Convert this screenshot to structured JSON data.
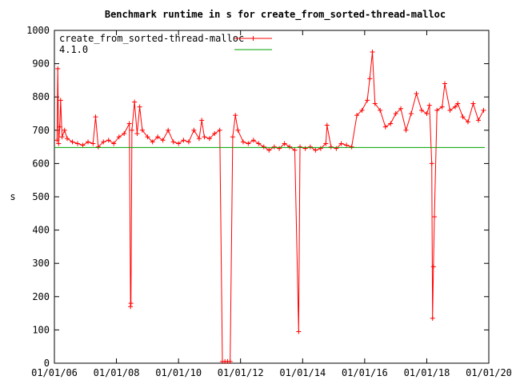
{
  "chart_data": {
    "type": "line",
    "title": "Benchmark runtime in s for create_from_sorted-thread-malloc",
    "xlabel": "",
    "ylabel": "s",
    "xlim": [
      "2006-01-01",
      "2020-01-01"
    ],
    "ylim": [
      0,
      1000
    ],
    "y_ticks": [
      "0",
      "100",
      "200",
      "300",
      "400",
      "500",
      "600",
      "700",
      "800",
      "900",
      "1000"
    ],
    "x_ticks": [
      {
        "date": "2006-01-01",
        "label": "01/01/06"
      },
      {
        "date": "2008-01-01",
        "label": "01/01/08"
      },
      {
        "date": "2010-01-01",
        "label": "01/01/10"
      },
      {
        "date": "2012-01-01",
        "label": "01/01/12"
      },
      {
        "date": "2014-01-01",
        "label": "01/01/14"
      },
      {
        "date": "2016-01-01",
        "label": "01/01/16"
      },
      {
        "date": "2018-01-01",
        "label": "01/01/18"
      },
      {
        "date": "2020-01-01",
        "label": "01/01/20"
      }
    ],
    "legend_position": "top-left",
    "grid": false,
    "series": [
      {
        "name": "create_from_sorted-thread-malloc",
        "color": "#ff0000",
        "marker": "plus",
        "points": [
          [
            "2006-02-01",
            670
          ],
          [
            "2006-02-10",
            885
          ],
          [
            "2006-02-20",
            660
          ],
          [
            "2006-03-05",
            710
          ],
          [
            "2006-03-15",
            790
          ],
          [
            "2006-04-01",
            680
          ],
          [
            "2006-05-01",
            700
          ],
          [
            "2006-06-01",
            675
          ],
          [
            "2006-08-01",
            665
          ],
          [
            "2006-10-01",
            660
          ],
          [
            "2006-12-01",
            655
          ],
          [
            "2007-02-01",
            665
          ],
          [
            "2007-04-01",
            660
          ],
          [
            "2007-05-01",
            740
          ],
          [
            "2007-06-01",
            650
          ],
          [
            "2007-08-01",
            665
          ],
          [
            "2007-10-01",
            670
          ],
          [
            "2007-12-01",
            660
          ],
          [
            "2008-02-01",
            680
          ],
          [
            "2008-04-01",
            690
          ],
          [
            "2008-06-01",
            720
          ],
          [
            "2008-06-15",
            170
          ],
          [
            "2008-06-20",
            180
          ],
          [
            "2008-07-01",
            700
          ],
          [
            "2008-08-01",
            785
          ],
          [
            "2008-09-01",
            690
          ],
          [
            "2008-10-01",
            770
          ],
          [
            "2008-11-01",
            700
          ],
          [
            "2009-01-01",
            680
          ],
          [
            "2009-03-01",
            665
          ],
          [
            "2009-05-01",
            680
          ],
          [
            "2009-07-01",
            670
          ],
          [
            "2009-09-01",
            700
          ],
          [
            "2009-11-01",
            665
          ],
          [
            "2010-01-01",
            660
          ],
          [
            "2010-03-01",
            670
          ],
          [
            "2010-05-01",
            665
          ],
          [
            "2010-07-01",
            700
          ],
          [
            "2010-09-01",
            675
          ],
          [
            "2010-10-01",
            730
          ],
          [
            "2010-11-01",
            680
          ],
          [
            "2011-01-01",
            675
          ],
          [
            "2011-03-01",
            690
          ],
          [
            "2011-05-01",
            700
          ],
          [
            "2011-06-01",
            5
          ],
          [
            "2011-07-01",
            5
          ],
          [
            "2011-08-01",
            5
          ],
          [
            "2011-09-01",
            5
          ],
          [
            "2011-10-01",
            680
          ],
          [
            "2011-11-01",
            745
          ],
          [
            "2011-12-01",
            700
          ],
          [
            "2012-02-01",
            665
          ],
          [
            "2012-04-01",
            660
          ],
          [
            "2012-06-01",
            670
          ],
          [
            "2012-08-01",
            660
          ],
          [
            "2012-10-01",
            650
          ],
          [
            "2012-12-01",
            640
          ],
          [
            "2013-02-01",
            650
          ],
          [
            "2013-04-01",
            645
          ],
          [
            "2013-06-01",
            660
          ],
          [
            "2013-08-01",
            650
          ],
          [
            "2013-10-01",
            640
          ],
          [
            "2013-11-15",
            95
          ],
          [
            "2013-12-01",
            650
          ],
          [
            "2014-02-01",
            645
          ],
          [
            "2014-04-01",
            650
          ],
          [
            "2014-06-01",
            640
          ],
          [
            "2014-08-01",
            645
          ],
          [
            "2014-10-01",
            660
          ],
          [
            "2014-10-15",
            715
          ],
          [
            "2014-12-01",
            650
          ],
          [
            "2015-02-01",
            645
          ],
          [
            "2015-04-01",
            660
          ],
          [
            "2015-06-01",
            655
          ],
          [
            "2015-08-01",
            650
          ],
          [
            "2015-10-01",
            745
          ],
          [
            "2015-12-01",
            760
          ],
          [
            "2016-02-01",
            790
          ],
          [
            "2016-03-01",
            855
          ],
          [
            "2016-04-01",
            935
          ],
          [
            "2016-05-01",
            780
          ],
          [
            "2016-07-01",
            760
          ],
          [
            "2016-09-01",
            710
          ],
          [
            "2016-11-01",
            720
          ],
          [
            "2017-01-01",
            750
          ],
          [
            "2017-03-01",
            765
          ],
          [
            "2017-05-01",
            700
          ],
          [
            "2017-07-01",
            750
          ],
          [
            "2017-09-01",
            810
          ],
          [
            "2017-11-01",
            760
          ],
          [
            "2018-01-01",
            750
          ],
          [
            "2018-02-01",
            775
          ],
          [
            "2018-03-01",
            600
          ],
          [
            "2018-03-10",
            135
          ],
          [
            "2018-03-20",
            290
          ],
          [
            "2018-04-01",
            440
          ],
          [
            "2018-05-01",
            760
          ],
          [
            "2018-07-01",
            770
          ],
          [
            "2018-08-01",
            840
          ],
          [
            "2018-10-01",
            760
          ],
          [
            "2018-12-01",
            770
          ],
          [
            "2019-01-01",
            780
          ],
          [
            "2019-03-01",
            740
          ],
          [
            "2019-05-01",
            725
          ],
          [
            "2019-07-01",
            780
          ],
          [
            "2019-09-01",
            730
          ],
          [
            "2019-11-01",
            760
          ]
        ]
      },
      {
        "name": "4.1.0",
        "color": "#00a000",
        "marker": "none",
        "points": [
          [
            "2006-01-01",
            648
          ],
          [
            "2019-11-15",
            648
          ]
        ]
      }
    ]
  }
}
